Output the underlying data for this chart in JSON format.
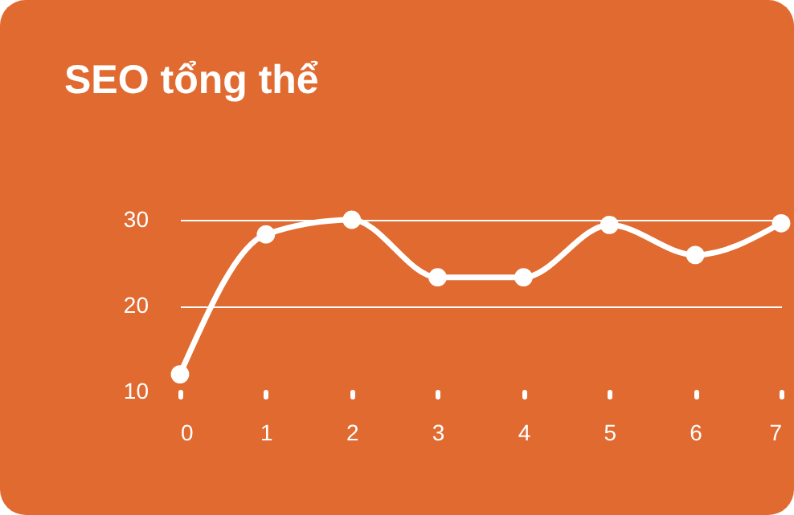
{
  "chart_data": {
    "type": "line",
    "title": "SEO tổng thể",
    "x": [
      0,
      1,
      2,
      3,
      4,
      5,
      6,
      7
    ],
    "series": [
      {
        "color": "#ffffff",
        "values": [
          12,
          28.3,
          30,
          23.3,
          23.3,
          29.4,
          25.9,
          29.6
        ]
      }
    ],
    "xlim": [
      0,
      7
    ],
    "xticks": [
      0,
      1,
      2,
      3,
      4,
      5,
      6,
      7
    ],
    "ylim": [
      10,
      30
    ],
    "yticks": [
      10,
      20,
      30
    ],
    "grid": "y",
    "marker": "circle",
    "line_style": "solid",
    "legend": false
  }
}
